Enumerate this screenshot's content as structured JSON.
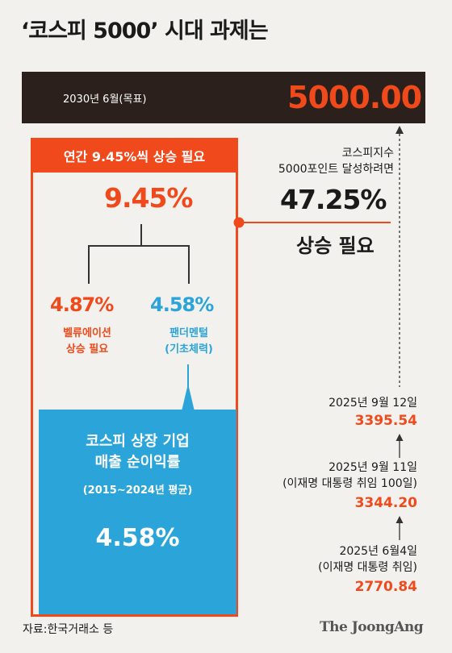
{
  "title": "‘코스피 5000’ 시대 과제는",
  "target": {
    "label": "2030년 6월(목표)",
    "value": "5000.00"
  },
  "growth_box": {
    "header": "연간 9.45%씩 상승 필요",
    "total": "9.45%",
    "left": {
      "value": "4.87%",
      "label_line1": "벨류에이션",
      "label_line2": "상승 필요"
    },
    "right": {
      "value": "4.58%",
      "label_line1": "팬더멘털",
      "label_line2": "(기초체력)"
    }
  },
  "profit_box": {
    "title_line1": "코스피 상장 기업",
    "title_line2": "매출 순이익률",
    "period": "(2015~2024년 평균)",
    "value": "4.58%"
  },
  "required": {
    "caption_line1": "코스피지수",
    "caption_line2": "5000포인트 달성하려면",
    "value": "47.25%",
    "label": "상승 필요"
  },
  "timeline": [
    {
      "date": "2025년 9월 12일",
      "note": "",
      "value": "3395.54"
    },
    {
      "date": "2025년 9월 11일",
      "note": "(이재명 대통령 취임 100일)",
      "value": "3344.20"
    },
    {
      "date": "2025년 6월4일",
      "note": "(이재명 대통령 취임)",
      "value": "2770.84"
    }
  ],
  "footer": {
    "source": "자료:한국거래소 등",
    "brand": "The JoongAng"
  },
  "colors": {
    "accent": "#f04a1c",
    "blue": "#2aa4d9",
    "dark": "#2b201b",
    "background": "#f2f1ed"
  }
}
